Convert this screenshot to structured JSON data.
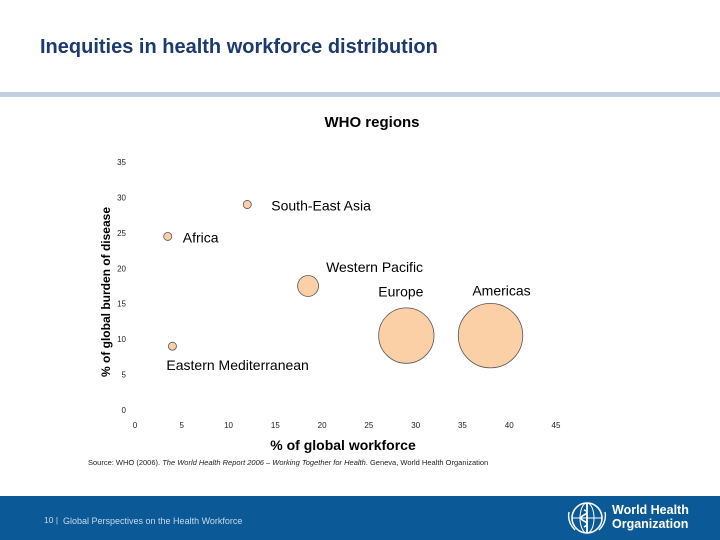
{
  "slide": {
    "title": "Inequities in health workforce distribution",
    "source_prefix": "Source: WHO (2006). ",
    "source_italic": "The World Health Report 2006 – Working Together for Health",
    "source_suffix": ". Geneva, World Health Organization"
  },
  "footer": {
    "page_number": "10 |",
    "text": "Global Perspectives on the Health Workforce",
    "logo_text": "World Health Organization",
    "background": "#0b5a97"
  },
  "chart_data": {
    "type": "scatter",
    "subtype": "bubble",
    "title": "WHO regions",
    "xlabel": "% of global workforce",
    "ylabel": "% of global burden of disease",
    "xlim": [
      0,
      45
    ],
    "ylim": [
      0,
      35
    ],
    "x_ticks": [
      "0",
      "5",
      "10",
      "15",
      "20",
      "25",
      "30",
      "35",
      "40",
      "45"
    ],
    "y_ticks": [
      "0",
      "5",
      "10",
      "15",
      "20",
      "25",
      "30",
      "35"
    ],
    "grid": false,
    "bubble_color": "#fbd0a6",
    "points": [
      {
        "label": "South-East Asia",
        "x": 12,
        "y": 29,
        "size": 0.3
      },
      {
        "label": "Africa",
        "x": 3.5,
        "y": 24.5,
        "size": 0.3
      },
      {
        "label": "Western Pacific",
        "x": 18.5,
        "y": 17.5,
        "size": 2
      },
      {
        "label": "Europe",
        "x": 29,
        "y": 10.5,
        "size": 14
      },
      {
        "label": "Americas",
        "x": 38,
        "y": 10.5,
        "size": 19
      },
      {
        "label": "Eastern Mediterranean",
        "x": 4,
        "y": 9,
        "size": 0.3
      }
    ]
  }
}
